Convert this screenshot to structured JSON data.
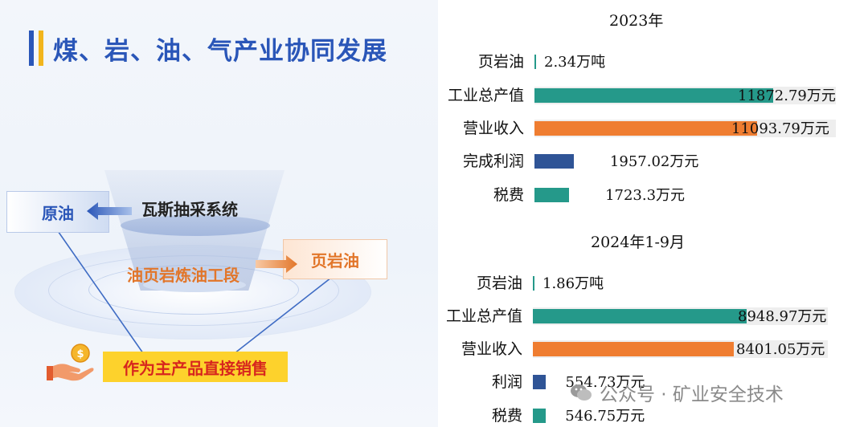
{
  "header": {
    "title": "煤、岩、油、气产业协同发展"
  },
  "diagram": {
    "crude_oil": "原油",
    "gas_system": "瓦斯抽采系统",
    "refining": "油页岩炼油工段",
    "shale_oil_box": "页岩油",
    "direct_sale": "作为主产品直接销售"
  },
  "colors": {
    "teal": "#25998a",
    "orange": "#ef7d31",
    "navy": "#2f5496",
    "title_blue": "#2a56b8",
    "yellow": "#fdd22c"
  },
  "watermark": {
    "text": "公众号 · 矿业安全技术"
  },
  "chart_data": [
    {
      "type": "bar",
      "orientation": "horizontal",
      "title": "2023年",
      "categories": [
        "页岩油",
        "工业总产值",
        "营业收入",
        "完成利润",
        "税费"
      ],
      "values": [
        2.34,
        11872.79,
        11093.79,
        1957.02,
        1723.3
      ],
      "value_labels": [
        "2.34万吨",
        "11872.79万元",
        "11093.79万元",
        "1957.02万元",
        "1723.3万元"
      ],
      "bar_colors": [
        "#25998a",
        "#25998a",
        "#ef7d31",
        "#2f5496",
        "#25998a"
      ],
      "xlim": [
        0,
        14800
      ]
    },
    {
      "type": "bar",
      "orientation": "horizontal",
      "title": "2024年1-9月",
      "categories": [
        "页岩油",
        "工业总产值",
        "营业收入",
        "利润",
        "税费"
      ],
      "values": [
        1.86,
        8948.97,
        8401.05,
        554.73,
        546.75
      ],
      "value_labels": [
        "1.86万吨",
        "8948.97万元",
        "8401.05万元",
        "554.73万元",
        "546.75万元"
      ],
      "bar_colors": [
        "#25998a",
        "#25998a",
        "#ef7d31",
        "#2f5496",
        "#25998a"
      ],
      "xlim": [
        0,
        11100
      ]
    }
  ]
}
